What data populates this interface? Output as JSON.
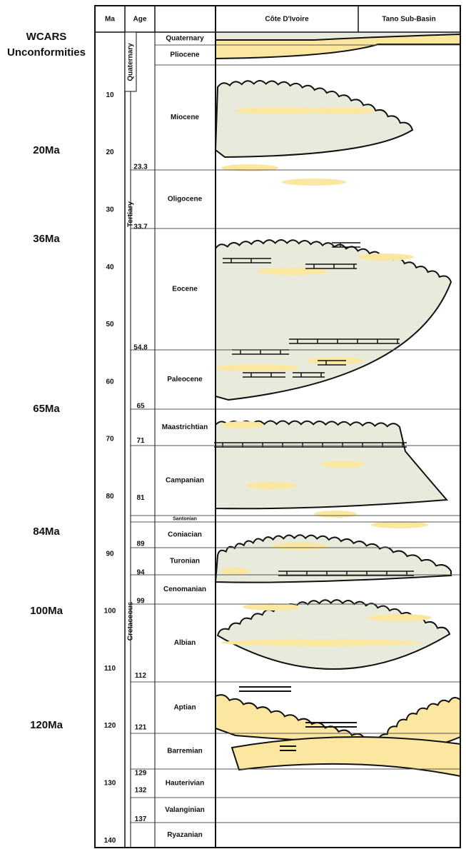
{
  "sidebar": {
    "title": [
      "WCARS",
      "Unconformities"
    ],
    "unconformities": [
      "20Ma",
      "36Ma",
      "65Ma",
      "84Ma",
      "100Ma",
      "120Ma"
    ]
  },
  "header": {
    "ma": "Ma",
    "age": "Age",
    "cote": "Côte D'Ivoire",
    "tano": "Tano Sub-Basin"
  },
  "ma_ticks": [
    10,
    20,
    30,
    40,
    50,
    60,
    70,
    80,
    90,
    100,
    110,
    120,
    130,
    140
  ],
  "periods": [
    "Quaternary",
    "Tertiary",
    "Cretaceous"
  ],
  "ages": [
    23.3,
    33.7,
    54.8,
    65,
    71,
    81,
    89,
    94,
    99,
    112,
    121,
    129,
    132,
    137
  ],
  "stages": [
    "Quaternary",
    "Pliocene",
    "Miocene",
    "Oligocene",
    "Eocene",
    "Paleocene",
    "Maastrichtian",
    "Campanian",
    "Santonian",
    "Coniacian",
    "Turonian",
    "Cenomanian",
    "Albian",
    "Aptian",
    "Barremian",
    "Hauterivian",
    "Valanginian",
    "Ryazanian"
  ]
}
